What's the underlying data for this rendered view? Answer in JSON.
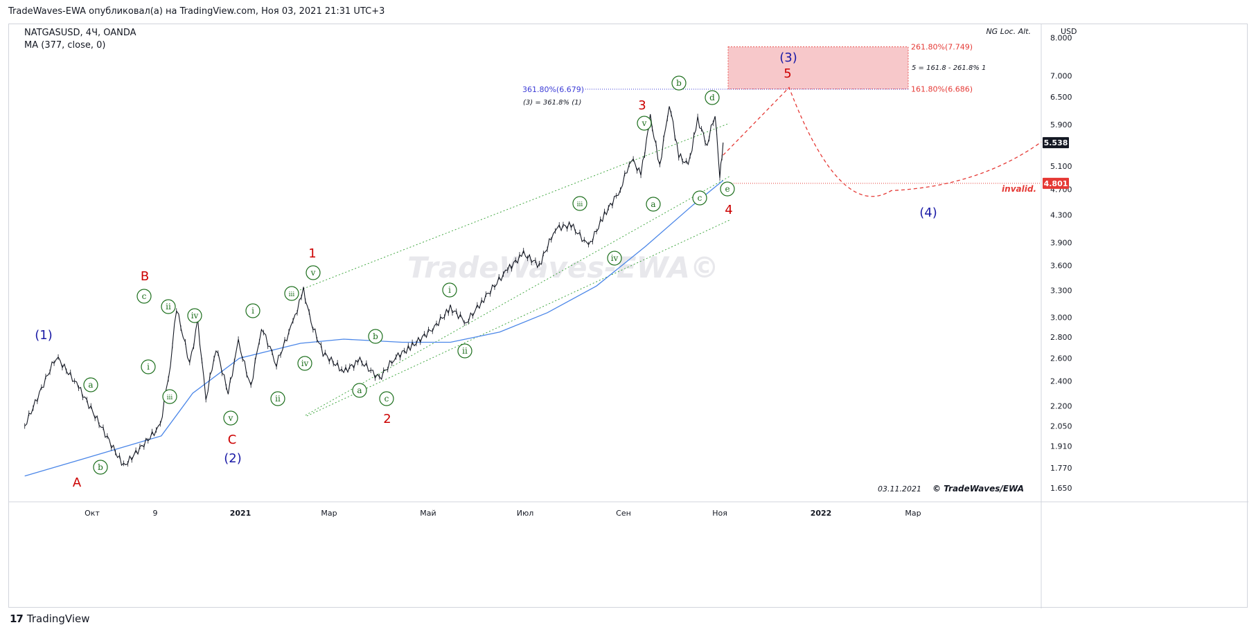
{
  "header": {
    "text": "TradeWaves-EWA опубликовал(а) на TradingView.com, Ноя 03, 2021 21:31 UTC+3"
  },
  "symbol": {
    "title": "NATGASUSD, 4Ч, OANDA",
    "indicator": "MA (377, close, 0)"
  },
  "chart_title": "NG Loc. Alt.",
  "currency": "USD",
  "watermark": "TradeWaves-EWA©",
  "signature": {
    "date": "03.11.2021",
    "author": "© TradeWaves/EWA"
  },
  "branding": "TradingView",
  "colors": {
    "candle": "#131722",
    "ma": "#4a86e8",
    "wave_red": "#cc0000",
    "wave_blue": "#1a1aa6",
    "wave_green": "#1b6e1b",
    "target_zone": "#f4b6b8",
    "projection": "#e53935",
    "fib_blue": "#3b3bd6",
    "channel": "#2e9e2e"
  },
  "chart_data": {
    "type": "line",
    "title": "NG Loc. Alt.",
    "x_ticks": [
      "Окт",
      "9",
      "2021",
      "Мар",
      "Май",
      "Июл",
      "Сен",
      "Ноя",
      "2022",
      "Мар"
    ],
    "y_ticks": [
      1.65,
      1.77,
      1.91,
      2.05,
      2.2,
      2.4,
      2.6,
      2.8,
      3.0,
      3.3,
      3.6,
      3.9,
      4.3,
      4.7,
      5.1,
      5.9,
      6.5,
      7.0,
      8.0
    ],
    "y_scale": "log",
    "ylim": [
      1.6,
      8.0
    ],
    "price_series": {
      "name": "NATGASUSD",
      "x": [
        "2020-09-01",
        "2020-09-15",
        "2020-09-25",
        "2020-10-05",
        "2020-10-14",
        "2020-10-24",
        "2020-10-30",
        "2020-11-12",
        "2020-11-20",
        "2020-11-28",
        "2020-12-08",
        "2020-12-20",
        "2020-12-30",
        "2021-01-08",
        "2021-01-15",
        "2021-01-25",
        "2021-02-05",
        "2021-02-12",
        "2021-02-17",
        "2021-02-25",
        "2021-03-10",
        "2021-03-20",
        "2021-04-01",
        "2021-04-10",
        "2021-04-20",
        "2021-05-05",
        "2021-05-15",
        "2021-05-25",
        "2021-06-05",
        "2021-06-20",
        "2021-06-30",
        "2021-07-10",
        "2021-07-20",
        "2021-07-30",
        "2021-08-10",
        "2021-08-20",
        "2021-08-30",
        "2021-09-06",
        "2021-09-12",
        "2021-09-18",
        "2021-09-24",
        "2021-09-30",
        "2021-10-06",
        "2021-10-12",
        "2021-10-18",
        "2021-10-24",
        "2021-10-29",
        "2021-11-01",
        "2021-11-03"
      ],
      "values": [
        2.05,
        2.62,
        2.35,
        1.78,
        2.05,
        2.55,
        3.1,
        2.55,
        2.95,
        2.25,
        2.7,
        2.3,
        2.75,
        2.35,
        2.9,
        2.55,
        2.95,
        3.3,
        2.95,
        2.65,
        2.48,
        2.58,
        2.42,
        2.6,
        2.7,
        2.9,
        3.1,
        2.95,
        3.2,
        3.55,
        3.75,
        3.6,
        4.1,
        4.15,
        3.85,
        4.3,
        4.7,
        5.25,
        4.95,
        6.05,
        5.1,
        6.35,
        5.3,
        5.1,
        6.0,
        5.5,
        6.15,
        4.9,
        5.54
      ]
    },
    "ma_series": {
      "name": "MA (377, close, 0)",
      "x": [
        "2020-09-01",
        "2020-10-15",
        "2020-11-15",
        "2020-12-31",
        "2021-02-10",
        "2021-03-10",
        "2021-04-15",
        "2021-05-15",
        "2021-06-15",
        "2021-07-15",
        "2021-08-15",
        "2021-09-15",
        "2021-10-15",
        "2021-11-03"
      ],
      "values": [
        1.72,
        1.98,
        2.3,
        2.6,
        2.74,
        2.78,
        2.75,
        2.75,
        2.85,
        3.05,
        3.35,
        3.85,
        4.45,
        4.85
      ]
    },
    "price_labels": [
      {
        "label": "5.538",
        "value": 5.538,
        "style": "dark"
      },
      {
        "label": "4.801",
        "value": 4.801,
        "style": "red"
      }
    ],
    "levels": [
      {
        "label": "361.80%(6.679)",
        "value": 6.679,
        "note": "(3) = 361.8% (1)"
      },
      {
        "label": "261.80%(7.749)",
        "value": 7.749,
        "note": "5 = 161.8 - 261.8% 1"
      },
      {
        "label": "161.80%(6.686)",
        "value": 6.686
      },
      {
        "label": "invalid.",
        "value": 4.801
      }
    ],
    "wave_labels": [
      {
        "text": "(1)",
        "degree": "blue"
      },
      {
        "text": "(2)",
        "degree": "blue"
      },
      {
        "text": "(3)",
        "degree": "blue"
      },
      {
        "text": "(4)",
        "degree": "blue"
      },
      {
        "text": "A",
        "degree": "red"
      },
      {
        "text": "B",
        "degree": "red"
      },
      {
        "text": "C",
        "degree": "red"
      },
      {
        "text": "1",
        "degree": "red"
      },
      {
        "text": "2",
        "degree": "red"
      },
      {
        "text": "3",
        "degree": "red"
      },
      {
        "text": "4",
        "degree": "red"
      },
      {
        "text": "5",
        "degree": "red"
      }
    ],
    "circled_labels": [
      {
        "text": "a"
      },
      {
        "text": "b"
      },
      {
        "text": "c"
      },
      {
        "text": "i"
      },
      {
        "text": "iii"
      },
      {
        "text": "ii"
      },
      {
        "text": "iv"
      },
      {
        "text": "v"
      },
      {
        "text": "i"
      },
      {
        "text": "ii"
      },
      {
        "text": "iii"
      },
      {
        "text": "iv"
      },
      {
        "text": "v"
      },
      {
        "text": "a"
      },
      {
        "text": "b"
      },
      {
        "text": "c"
      },
      {
        "text": "i"
      },
      {
        "text": "ii"
      },
      {
        "text": "iii"
      },
      {
        "text": "iv"
      },
      {
        "text": "v"
      },
      {
        "text": "a"
      },
      {
        "text": "b"
      },
      {
        "text": "c"
      },
      {
        "text": "d"
      },
      {
        "text": "e"
      }
    ],
    "projection": {
      "x": [
        "2021-11-03",
        "2021-11-25",
        "2022-01-10",
        "2022-02-15",
        "2022-03-20"
      ],
      "values": [
        5.3,
        6.7,
        4.5,
        4.8,
        5.55
      ]
    },
    "target_zone": {
      "from": 6.686,
      "to": 7.749
    }
  }
}
